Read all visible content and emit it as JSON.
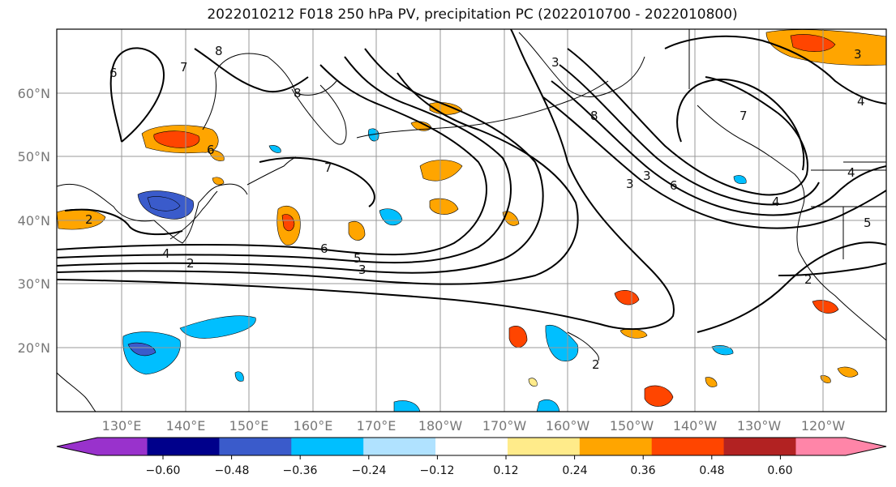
{
  "title": "2022010212 F018 250 hPa PV, precipitation PC (2022010700 - 2022010800)",
  "map": {
    "lat_labels": [
      "60°N",
      "50°N",
      "40°N",
      "30°N",
      "20°N"
    ],
    "lon_labels": [
      "130°E",
      "140°E",
      "150°E",
      "160°E",
      "170°E",
      "180°W",
      "170°W",
      "160°W",
      "150°W",
      "140°W",
      "130°W",
      "120°W"
    ],
    "lat_range": [
      10,
      70
    ],
    "lon_range": [
      120,
      250
    ],
    "grid": true
  },
  "contour_labels": [
    "6",
    "8",
    "7",
    "6",
    "8",
    "7",
    "6",
    "5",
    "3",
    "2",
    "4",
    "2",
    "3",
    "8",
    "6",
    "4",
    "3",
    "2",
    "4",
    "5",
    "3",
    "2",
    "3",
    "4",
    "7"
  ],
  "colorbar": {
    "ticks": [
      "−0.60",
      "−0.48",
      "−0.36",
      "−0.24",
      "−0.12",
      "0.12",
      "0.24",
      "0.36",
      "0.48",
      "0.60"
    ],
    "colors": [
      "#9932CC",
      "#00008B",
      "#3A5BCB",
      "#00BFFF",
      "#B0E2FF",
      "#FFFFFF",
      "#FFEB8A",
      "#FFA500",
      "#FF4500",
      "#B22222",
      "#FF85A8"
    ],
    "extend": "both"
  },
  "colors": {
    "contour": "#000000",
    "grid": "#999999",
    "coast": "#000000"
  }
}
